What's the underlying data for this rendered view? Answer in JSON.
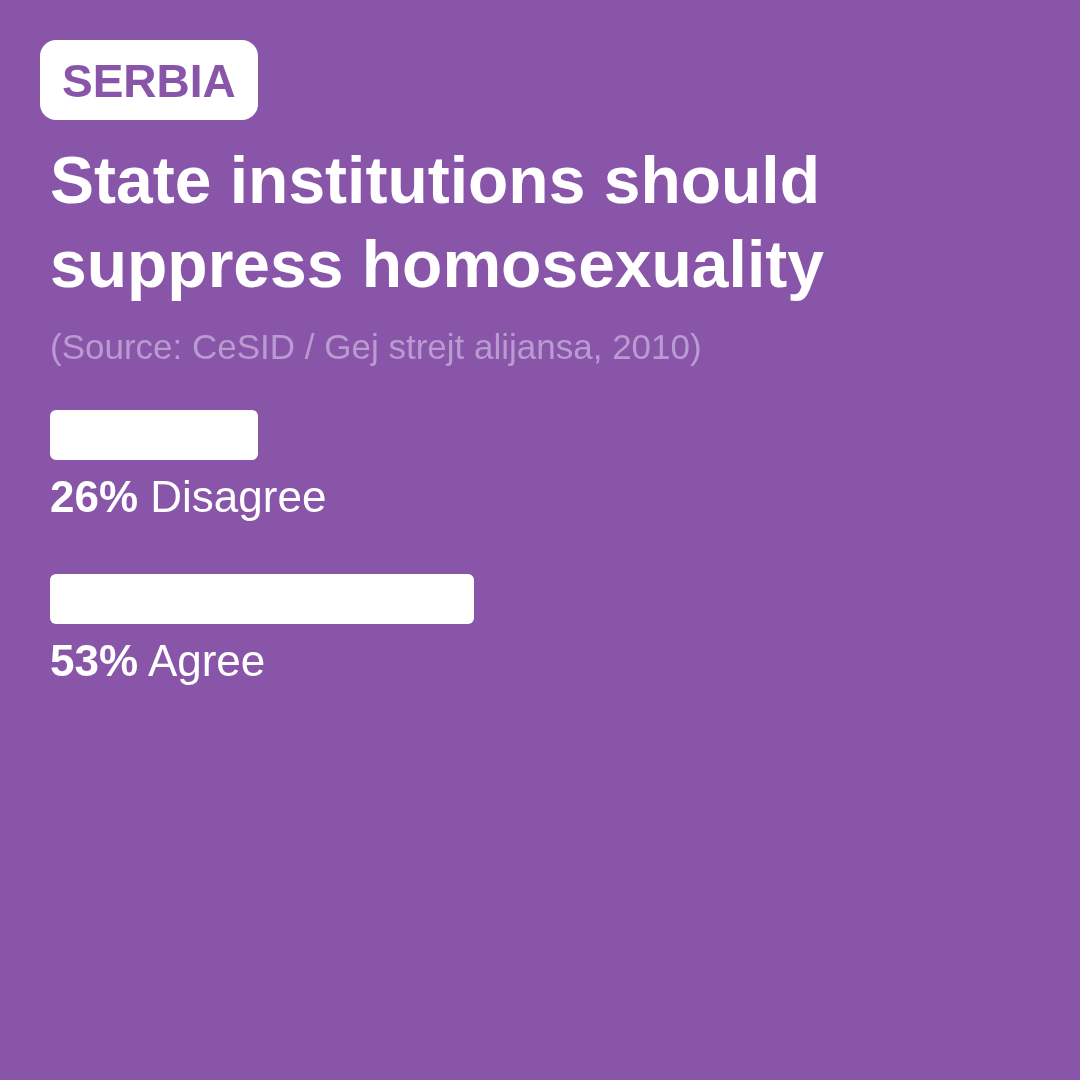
{
  "chart_data": {
    "type": "bar",
    "orientation": "horizontal",
    "subtitle": "SERBIA",
    "title": "State institutions should suppress homosexuality",
    "annotations": [
      "(Source: CeSID / Gej strejt alijansa, 2010)"
    ],
    "categories": [
      "Disagree",
      "Agree"
    ],
    "values": [
      26,
      53
    ],
    "value_labels": [
      "26%",
      "53%"
    ],
    "color": "#ffffff",
    "grid": false,
    "legend": false
  }
}
